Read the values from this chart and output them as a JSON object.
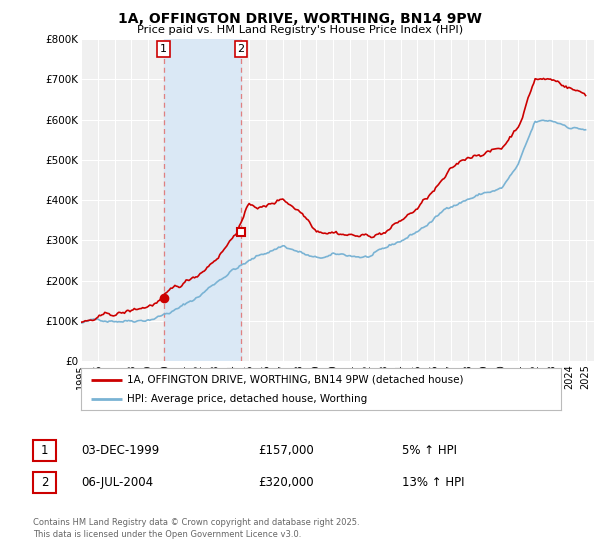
{
  "title": "1A, OFFINGTON DRIVE, WORTHING, BN14 9PW",
  "subtitle": "Price paid vs. HM Land Registry's House Price Index (HPI)",
  "legend_entries": [
    "1A, OFFINGTON DRIVE, WORTHING, BN14 9PW (detached house)",
    "HPI: Average price, detached house, Worthing"
  ],
  "line_colors": [
    "#cc0000",
    "#7ab3d4"
  ],
  "purchase_markers": [
    {
      "label": "1",
      "year_num": 1999.92,
      "price": 157000
    },
    {
      "label": "2",
      "year_num": 2004.51,
      "price": 320000
    }
  ],
  "table_rows": [
    {
      "num": "1",
      "date": "03-DEC-1999",
      "price": "£157,000",
      "hpi": "5% ↑ HPI"
    },
    {
      "num": "2",
      "date": "06-JUL-2004",
      "price": "£320,000",
      "hpi": "13% ↑ HPI"
    }
  ],
  "footnote": "Contains HM Land Registry data © Crown copyright and database right 2025.\nThis data is licensed under the Open Government Licence v3.0.",
  "ylim": [
    0,
    800000
  ],
  "yticks": [
    0,
    100000,
    200000,
    300000,
    400000,
    500000,
    600000,
    700000,
    800000
  ],
  "ytick_labels": [
    "£0",
    "£100K",
    "£200K",
    "£300K",
    "£400K",
    "£500K",
    "£600K",
    "£700K",
    "£800K"
  ],
  "xlim_start": 1995.0,
  "xlim_end": 2025.5,
  "xticks": [
    1995,
    1996,
    1997,
    1998,
    1999,
    2000,
    2001,
    2002,
    2003,
    2004,
    2005,
    2006,
    2007,
    2008,
    2009,
    2010,
    2011,
    2012,
    2013,
    2014,
    2015,
    2016,
    2017,
    2018,
    2019,
    2020,
    2021,
    2022,
    2023,
    2024,
    2025
  ],
  "background_color": "#ffffff",
  "plot_bg_color": "#f0f0f0",
  "grid_color": "#ffffff",
  "shaded_region": {
    "x_start": 1999.92,
    "x_end": 2004.51
  },
  "shade_color": "#dae8f5"
}
